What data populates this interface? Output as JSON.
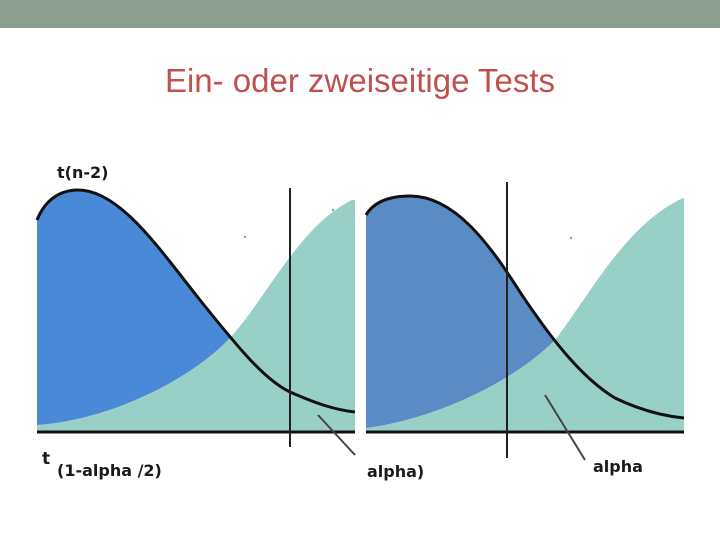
{
  "slide": {
    "title": "Ein- oder zweiseitige Tests"
  },
  "left_panel": {
    "y_label": "t(n-2)",
    "t_label": "t",
    "sub_label": "(1-alpha /2)",
    "tail_label": "alpha)"
  },
  "right_panel": {
    "tail_label": "alpha"
  },
  "colors": {
    "top_bar": "#8c9c8f",
    "title": "#c0504d",
    "left_blue": "#4a88d8",
    "right_blue": "#5b8bc4",
    "teal": "#98d0c8",
    "curve": "#111111"
  }
}
